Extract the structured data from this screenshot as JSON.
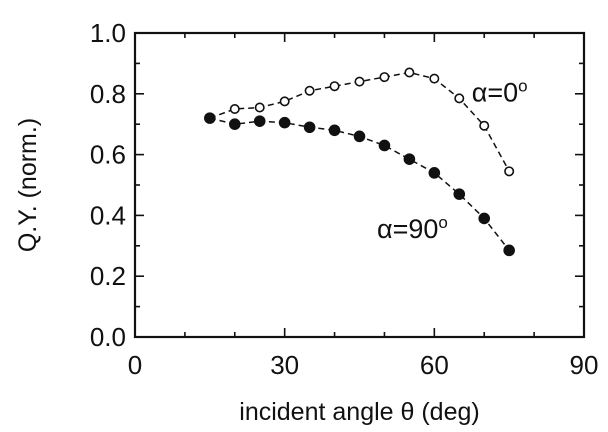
{
  "chart_data": {
    "type": "line",
    "title": "",
    "xlabel": "incident angle θ (deg)",
    "ylabel": "Q.Y. (norm.)",
    "xlim": [
      0,
      90
    ],
    "ylim": [
      0.0,
      1.0
    ],
    "xticks": [
      0,
      30,
      60,
      90
    ],
    "xtick_labels": [
      "0",
      "30",
      "60",
      "90"
    ],
    "yticks": [
      0.0,
      0.2,
      0.4,
      0.6,
      0.8,
      1.0
    ],
    "ytick_labels": [
      "0.0",
      "0.2",
      "0.4",
      "0.6",
      "0.8",
      "1.0"
    ],
    "x_minor_step": 10,
    "y_minor_step": 0.1,
    "grid": false,
    "legend": "none",
    "series": [
      {
        "name": "α=0°",
        "label_main": "α=0",
        "label_sup": "o",
        "marker": "open-circle",
        "line_style": "dashed",
        "color": "#111111",
        "x": [
          15,
          20,
          25,
          30,
          35,
          40,
          45,
          50,
          55,
          60,
          65,
          70,
          75
        ],
        "y": [
          0.72,
          0.75,
          0.755,
          0.775,
          0.81,
          0.825,
          0.84,
          0.855,
          0.87,
          0.85,
          0.785,
          0.695,
          0.545
        ]
      },
      {
        "name": "α=90°",
        "label_main": "α=90",
        "label_sup": "o",
        "marker": "filled-circle",
        "line_style": "dashed",
        "color": "#111111",
        "x": [
          15,
          20,
          25,
          30,
          35,
          40,
          45,
          50,
          55,
          60,
          65,
          70,
          75
        ],
        "y": [
          0.72,
          0.7,
          0.71,
          0.705,
          0.69,
          0.68,
          0.66,
          0.63,
          0.585,
          0.54,
          0.47,
          0.39,
          0.285
        ]
      }
    ]
  }
}
